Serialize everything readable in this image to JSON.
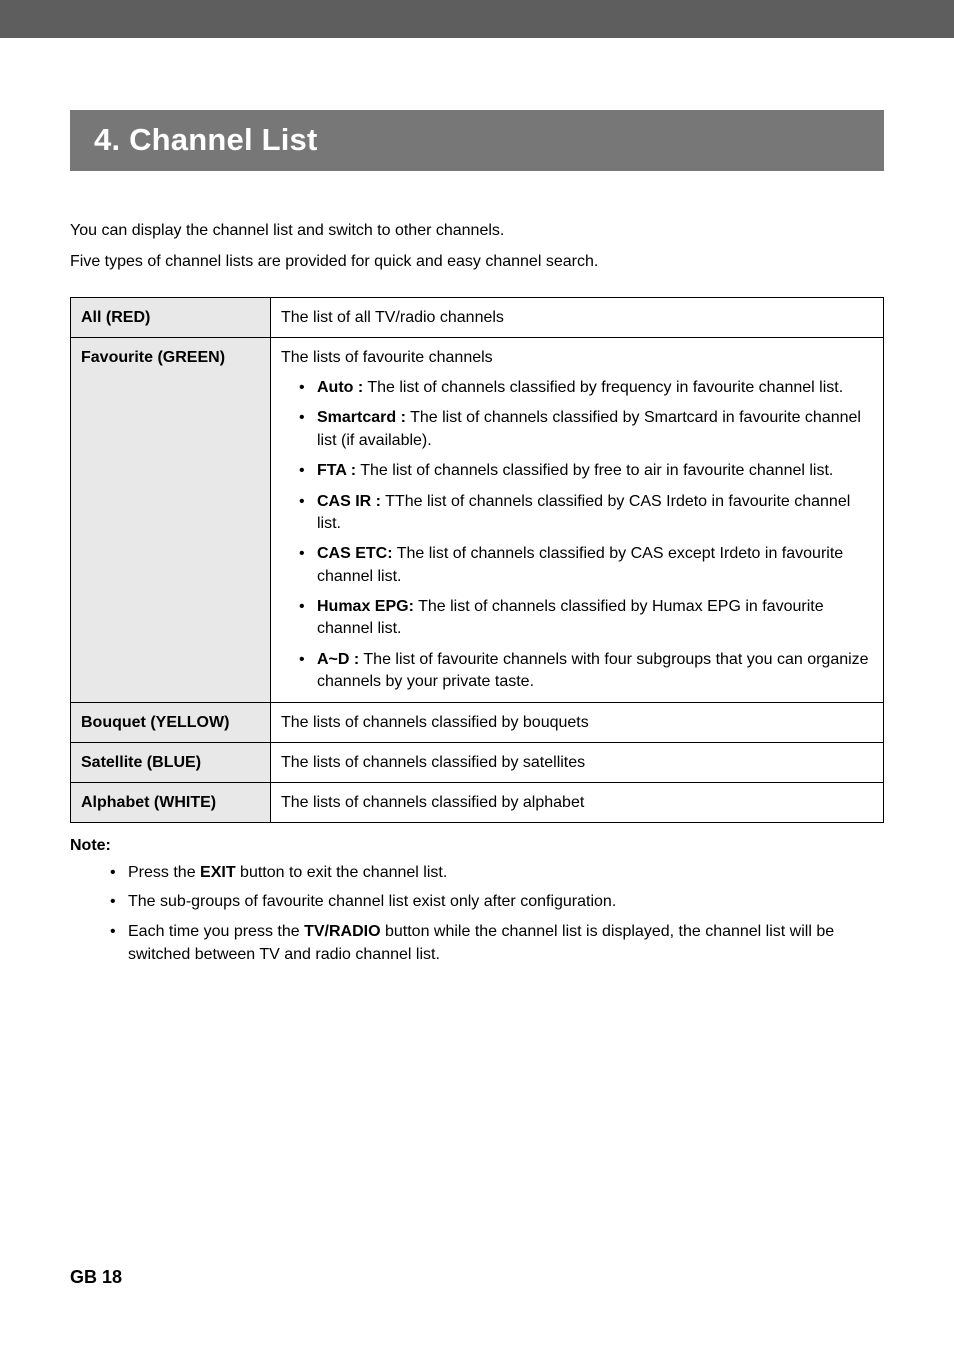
{
  "header": {
    "chapter_title": "4. Channel List"
  },
  "intro": {
    "line1": "You can display the channel list and switch to other channels.",
    "line2": "Five types of channel lists are provided for quick and easy channel search."
  },
  "table": {
    "rows": [
      {
        "label": "All (RED)",
        "text": "The list of all TV/radio channels",
        "items": null
      },
      {
        "label": "Favourite (GREEN)",
        "text": "The lists of favourite channels",
        "items": [
          {
            "term": "Auto :",
            "desc": " The list of channels classified by frequency in favourite channel list."
          },
          {
            "term": "Smartcard :",
            "desc": " The list of channels classified by Smartcard in favourite channel list (if available)."
          },
          {
            "term": "FTA :",
            "desc": " The list of channels classified by free to air in favourite channel list."
          },
          {
            "term": "CAS IR :",
            "desc": " TThe list of channels classified by CAS Irdeto in favourite channel list."
          },
          {
            "term": "CAS ETC:",
            "desc": " The list of channels classified by CAS except Irdeto in favourite channel list."
          },
          {
            "term": "Humax EPG:",
            "desc": " The list of channels classified by Humax EPG in favourite channel list."
          },
          {
            "term": "A~D :",
            "desc": " The list of favourite channels with four subgroups that you can organize channels by your private taste."
          }
        ]
      },
      {
        "label": "Bouquet (YELLOW)",
        "text": "The lists of channels classified by bouquets",
        "items": null
      },
      {
        "label": "Satellite (BLUE)",
        "text": "The lists of channels classified by satellites",
        "items": null
      },
      {
        "label": "Alphabet (WHITE)",
        "text": "The lists of channels classified by alphabet",
        "items": null
      }
    ]
  },
  "note": {
    "heading": "Note:",
    "items": [
      {
        "pre": "Press the ",
        "bold": "EXIT",
        "post": " button to exit the channel list."
      },
      {
        "pre": "The sub-groups of favourite channel list exist only after configuration.",
        "bold": "",
        "post": ""
      },
      {
        "pre": "Each time you press the ",
        "bold": "TV/RADIO",
        "post": " button while the channel list is displayed, the channel list will be switched between TV and radio channel list."
      }
    ]
  },
  "footer": {
    "page": "GB 18"
  },
  "style": {
    "top_bar_color": "#5e5e5e",
    "chapter_band_color": "#777777",
    "chapter_title_color": "#ffffff",
    "chapter_title_fontsize": 31,
    "body_fontsize": 16,
    "header_cell_bg": "#e8e8e8",
    "border_color": "#000000"
  }
}
